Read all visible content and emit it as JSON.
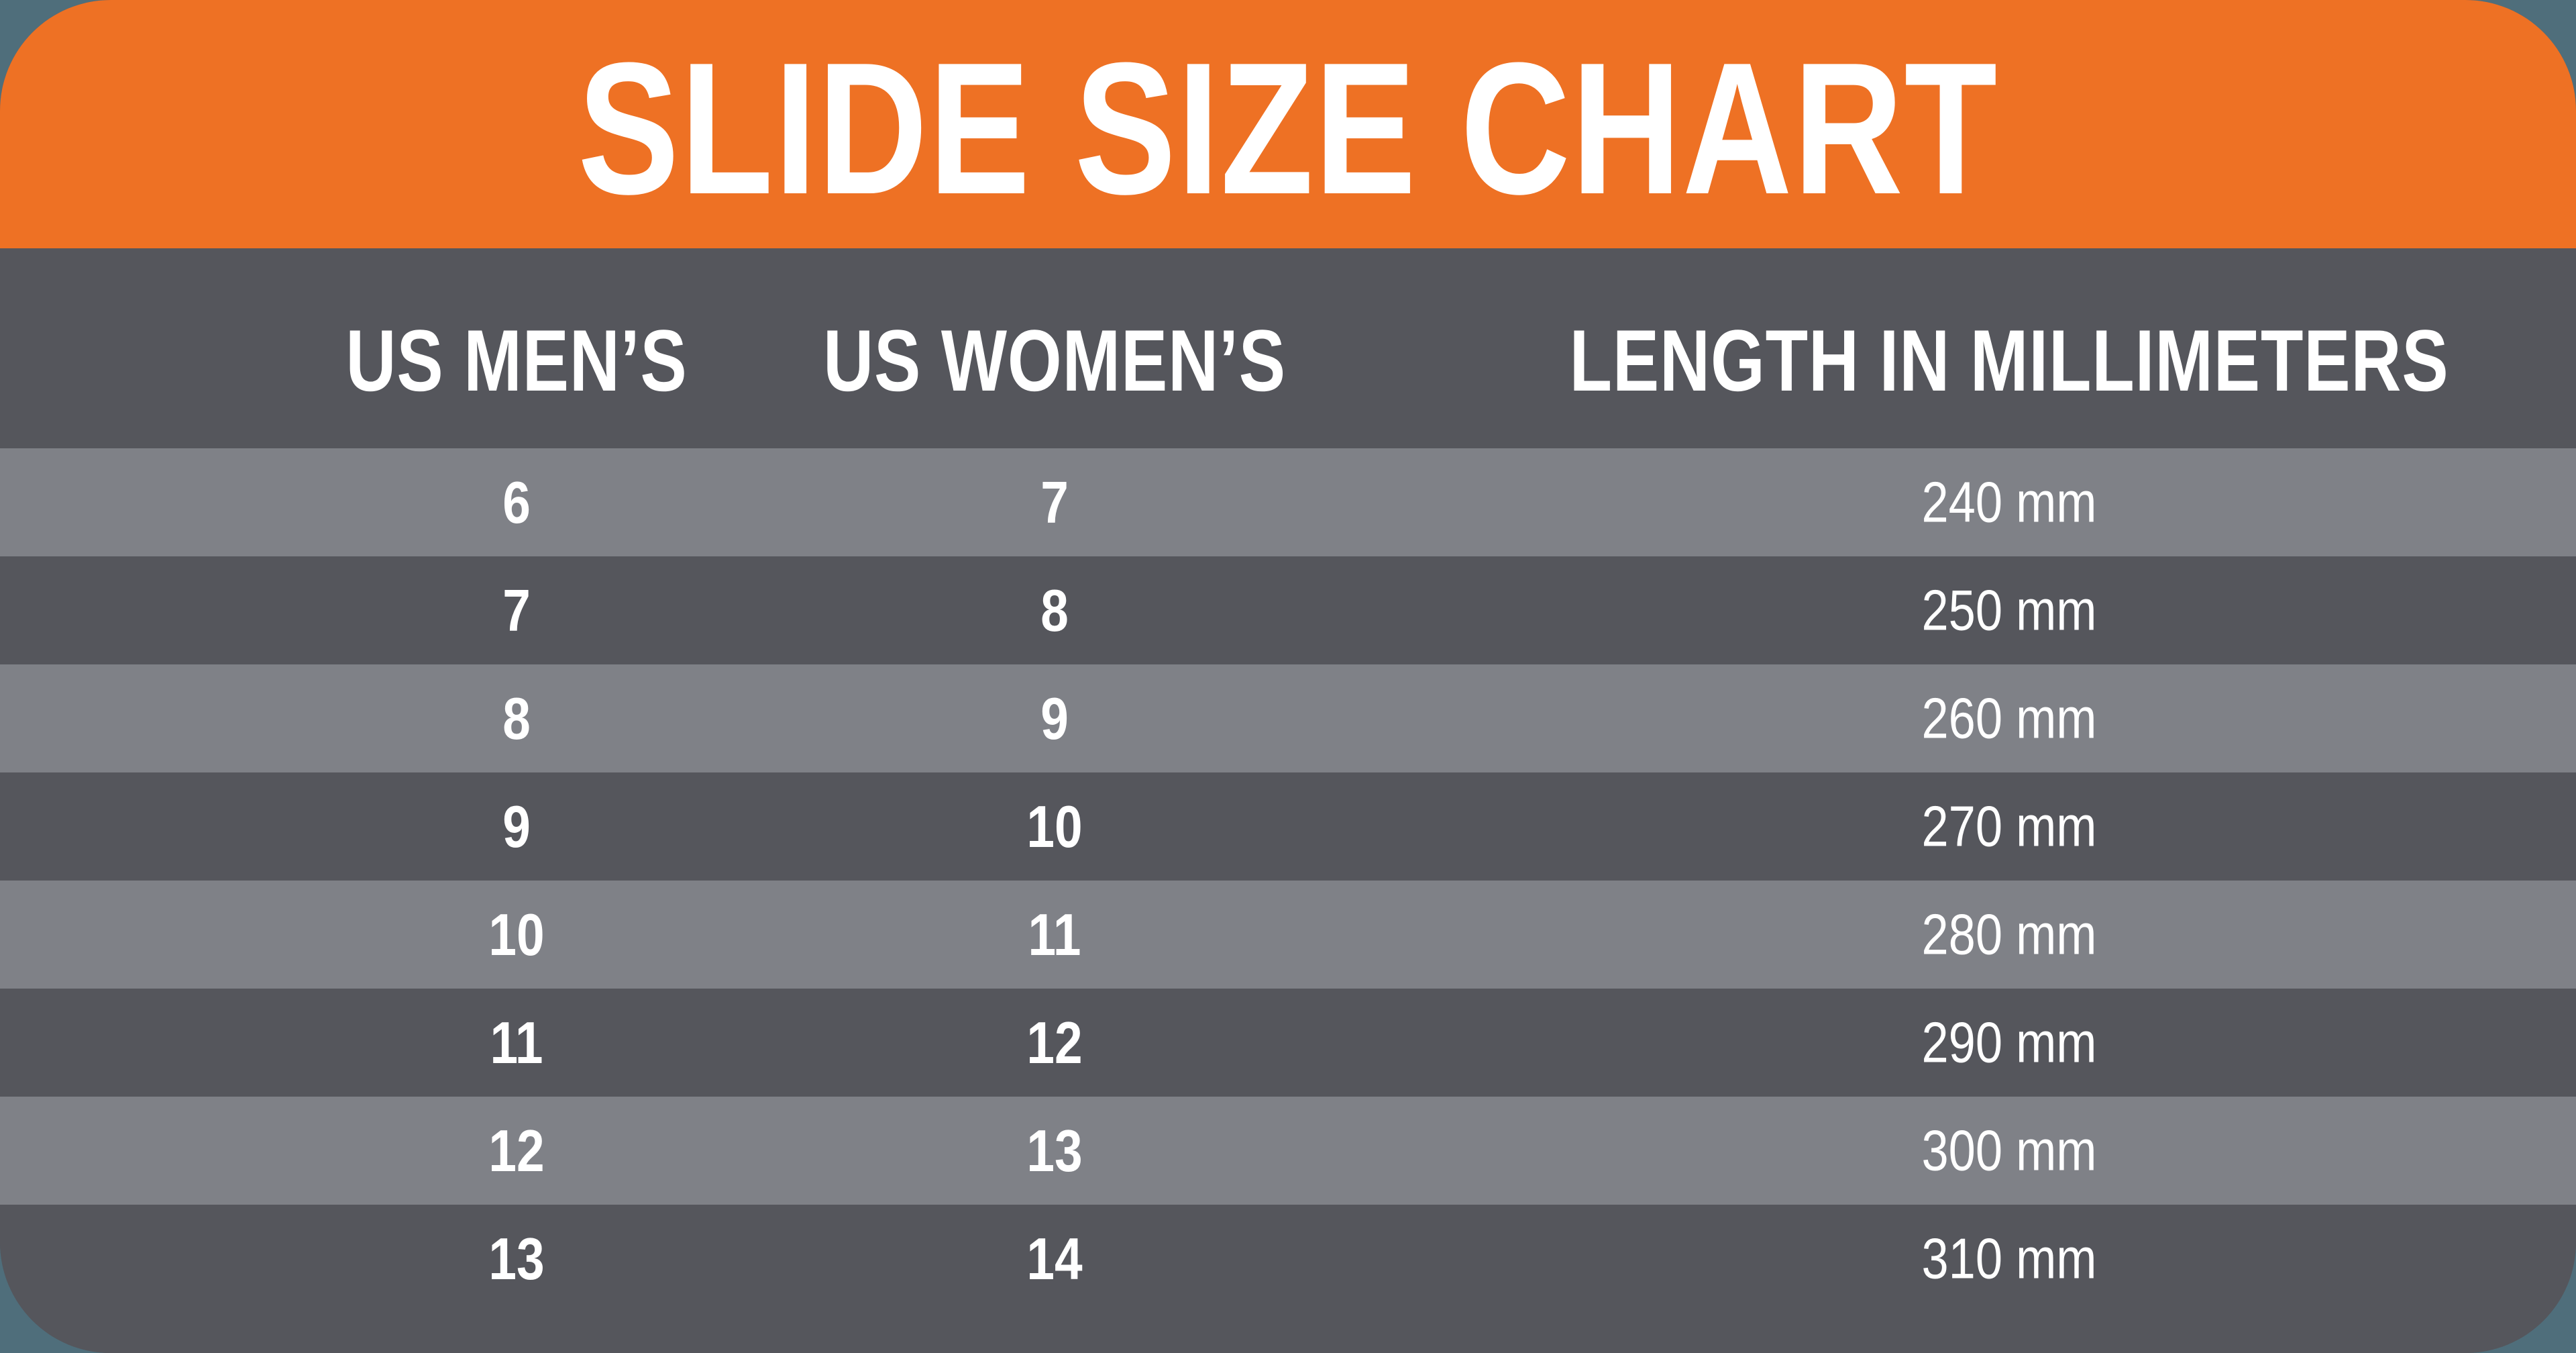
{
  "chart_data": {
    "type": "table",
    "title": "SLIDE SIZE CHART",
    "columns": [
      "US MEN’S",
      "US WOMEN’S",
      "LENGTH IN MILLIMETERS"
    ],
    "rows": [
      [
        "6",
        "7",
        "240 mm"
      ],
      [
        "7",
        "8",
        "250 mm"
      ],
      [
        "8",
        "9",
        "260 mm"
      ],
      [
        "9",
        "10",
        "270 mm"
      ],
      [
        "10",
        "11",
        "280 mm"
      ],
      [
        "11",
        "12",
        "290 mm"
      ],
      [
        "12",
        "13",
        "300 mm"
      ],
      [
        "13",
        "14",
        "310 mm"
      ]
    ]
  },
  "colors": {
    "header_orange": "#EE7124",
    "row_dark": "#55565C",
    "row_light": "#7F8187",
    "page_background": "#4F6E7B",
    "text_white": "#FFFFFF"
  }
}
